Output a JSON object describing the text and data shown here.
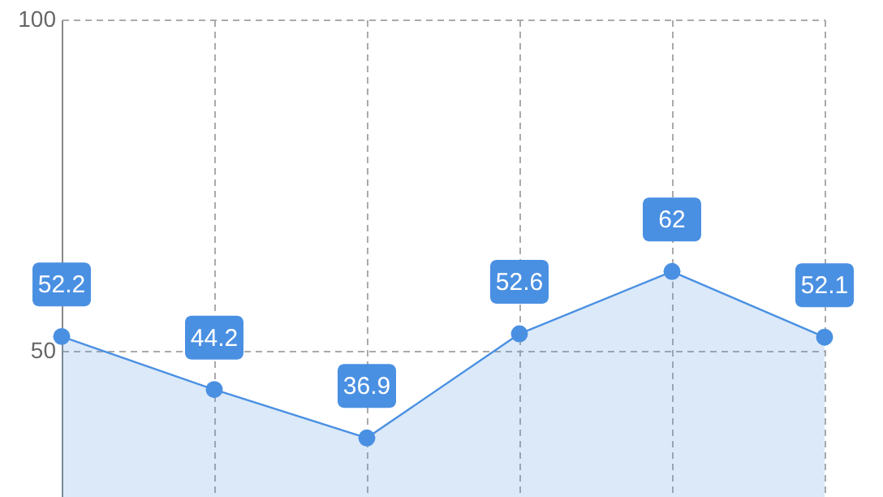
{
  "chart_data": {
    "type": "area",
    "categories": [
      null,
      null,
      null,
      null,
      null,
      null
    ],
    "series": [
      {
        "color": "#4a90e2",
        "values": [
          52.2,
          44.2,
          36.9,
          52.6,
          62,
          52.1
        ]
      }
    ],
    "ylim": [
      28,
      100
    ],
    "yticks": [
      50,
      100
    ],
    "grid": true,
    "tick_labels": "y",
    "marker": "circle",
    "data_labels": true
  }
}
